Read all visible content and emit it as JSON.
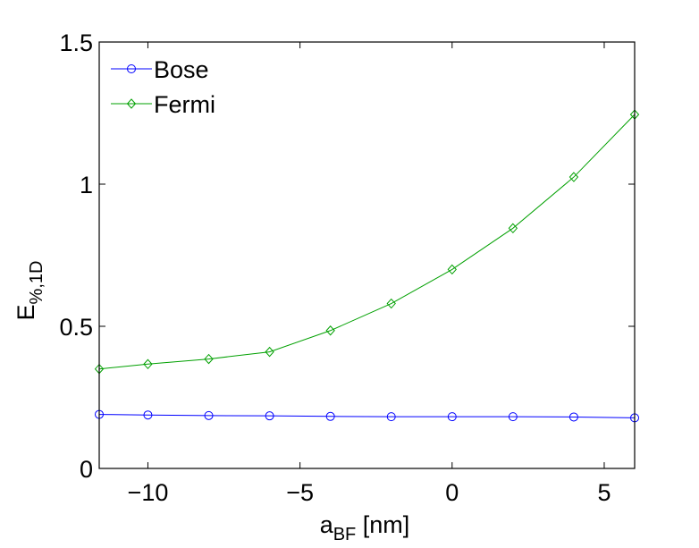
{
  "chart_data": {
    "type": "line",
    "title": "",
    "xlabel": "a",
    "xlabel_sub": "BF",
    "xlabel_unit": " [nm]",
    "ylabel": "E",
    "ylabel_sub": "%,1D",
    "xlim": [
      -11.6,
      6
    ],
    "ylim": [
      0,
      1.5
    ],
    "xticks": [
      -10,
      -5,
      0,
      5
    ],
    "xtick_labels": [
      "−10",
      "−5",
      "0",
      "5"
    ],
    "yticks": [
      0,
      0.5,
      1,
      1.5
    ],
    "ytick_labels": [
      "0",
      "0.5",
      "1",
      "1.5"
    ],
    "grid": false,
    "legend_position": "top-left",
    "x": [
      -11.6,
      -10,
      -8,
      -6,
      -4,
      -2,
      0,
      2,
      4,
      6
    ],
    "series": [
      {
        "name": "Bose",
        "color": "#0000ff",
        "marker": "circle",
        "values": [
          0.19,
          0.188,
          0.186,
          0.185,
          0.183,
          0.182,
          0.182,
          0.182,
          0.181,
          0.178
        ]
      },
      {
        "name": "Fermi",
        "color": "#00a000",
        "marker": "diamond",
        "values": [
          0.35,
          0.367,
          0.385,
          0.41,
          0.485,
          0.58,
          0.7,
          0.845,
          1.025,
          1.245
        ]
      }
    ]
  }
}
